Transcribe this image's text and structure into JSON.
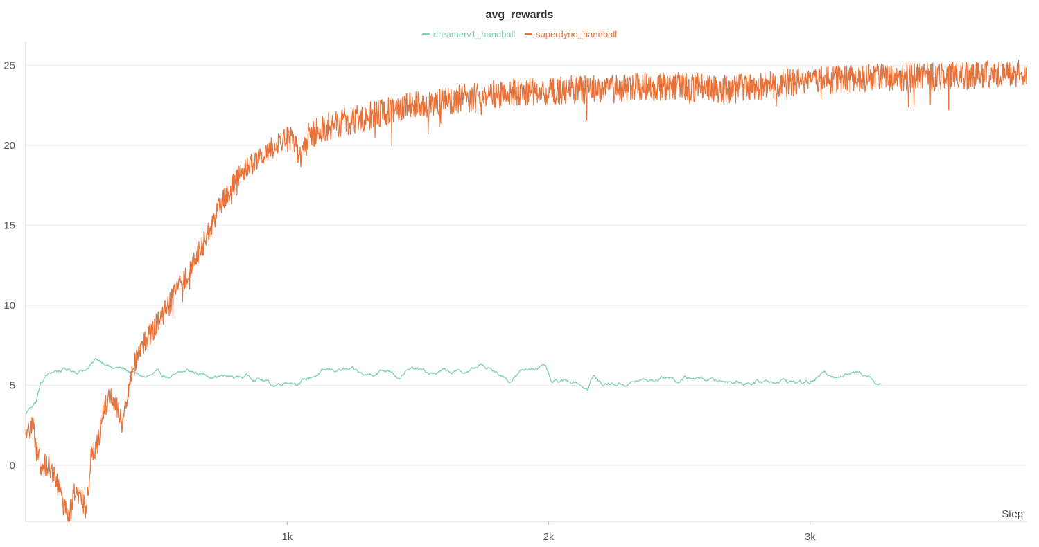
{
  "chart_data": {
    "type": "line",
    "title": "avg_rewards",
    "xlabel": "Step",
    "ylabel": "",
    "xlim": [
      0,
      3830
    ],
    "ylim": [
      -3.5,
      26.5
    ],
    "x_ticks": [
      1000,
      2000,
      3000
    ],
    "x_tick_labels": [
      "1k",
      "2k",
      "3k"
    ],
    "y_ticks": [
      0,
      5,
      10,
      15,
      20,
      25
    ],
    "y_tick_labels": [
      "0",
      "5",
      "10",
      "15",
      "20",
      "25"
    ],
    "grid": true,
    "legend": "top-center",
    "series": [
      {
        "name": "dreamerv1_handball",
        "color": "#7ecdb6",
        "noise": 0.18,
        "points": [
          [
            0,
            3.2
          ],
          [
            20,
            3.7
          ],
          [
            40,
            4.0
          ],
          [
            55,
            5.0
          ],
          [
            80,
            5.6
          ],
          [
            110,
            5.9
          ],
          [
            150,
            6.0
          ],
          [
            200,
            5.9
          ],
          [
            240,
            6.1
          ],
          [
            270,
            6.6
          ],
          [
            300,
            6.5
          ],
          [
            330,
            6.1
          ],
          [
            380,
            6.0
          ],
          [
            420,
            5.7
          ],
          [
            460,
            5.5
          ],
          [
            500,
            5.7
          ],
          [
            560,
            5.5
          ],
          [
            620,
            5.9
          ],
          [
            680,
            5.7
          ],
          [
            740,
            5.6
          ],
          [
            800,
            5.5
          ],
          [
            850,
            5.6
          ],
          [
            900,
            5.4
          ],
          [
            950,
            5.0
          ],
          [
            1000,
            5.3
          ],
          [
            1050,
            5.2
          ],
          [
            1100,
            5.6
          ],
          [
            1150,
            5.9
          ],
          [
            1200,
            6.0
          ],
          [
            1250,
            5.9
          ],
          [
            1300,
            5.6
          ],
          [
            1350,
            5.9
          ],
          [
            1400,
            6.0
          ],
          [
            1430,
            5.5
          ],
          [
            1450,
            5.9
          ],
          [
            1500,
            6.0
          ],
          [
            1550,
            5.7
          ],
          [
            1600,
            5.9
          ],
          [
            1650,
            5.8
          ],
          [
            1700,
            5.9
          ],
          [
            1740,
            6.3
          ],
          [
            1760,
            6.0
          ],
          [
            1800,
            5.9
          ],
          [
            1850,
            5.3
          ],
          [
            1900,
            5.9
          ],
          [
            1950,
            6.2
          ],
          [
            1990,
            6.1
          ],
          [
            2010,
            5.1
          ],
          [
            2050,
            5.2
          ],
          [
            2100,
            5.3
          ],
          [
            2150,
            4.8
          ],
          [
            2170,
            5.6
          ],
          [
            2200,
            5.1
          ],
          [
            2250,
            5.1
          ],
          [
            2300,
            5.1
          ],
          [
            2350,
            5.3
          ],
          [
            2400,
            5.3
          ],
          [
            2450,
            5.6
          ],
          [
            2500,
            5.3
          ],
          [
            2550,
            5.5
          ],
          [
            2600,
            5.4
          ],
          [
            2650,
            5.3
          ],
          [
            2700,
            5.3
          ],
          [
            2750,
            5.2
          ],
          [
            2800,
            5.2
          ],
          [
            2850,
            5.3
          ],
          [
            2900,
            5.3
          ],
          [
            2950,
            5.2
          ],
          [
            3000,
            5.2
          ],
          [
            3050,
            5.7
          ],
          [
            3100,
            5.7
          ],
          [
            3150,
            5.7
          ],
          [
            3200,
            5.8
          ],
          [
            3230,
            5.7
          ],
          [
            3250,
            5.2
          ],
          [
            3270,
            5.1
          ]
        ]
      },
      {
        "name": "superdyno_handball",
        "color": "#e8733a",
        "noise": 0.9,
        "points": [
          [
            0,
            1.5
          ],
          [
            25,
            2.8
          ],
          [
            40,
            1.5
          ],
          [
            60,
            0.0
          ],
          [
            90,
            0.0
          ],
          [
            120,
            -1.0
          ],
          [
            140,
            -2.5
          ],
          [
            165,
            -3.3
          ],
          [
            190,
            -1.5
          ],
          [
            215,
            -1.9
          ],
          [
            230,
            -3.0
          ],
          [
            250,
            0.7
          ],
          [
            270,
            1.0
          ],
          [
            300,
            3.5
          ],
          [
            330,
            4.5
          ],
          [
            350,
            3.5
          ],
          [
            370,
            2.5
          ],
          [
            390,
            4.5
          ],
          [
            420,
            6.5
          ],
          [
            460,
            7.8
          ],
          [
            500,
            8.8
          ],
          [
            540,
            9.8
          ],
          [
            580,
            11.0
          ],
          [
            620,
            12.0
          ],
          [
            660,
            13.2
          ],
          [
            700,
            14.5
          ],
          [
            740,
            16.2
          ],
          [
            780,
            17.2
          ],
          [
            820,
            18.2
          ],
          [
            860,
            18.8
          ],
          [
            900,
            19.3
          ],
          [
            940,
            19.8
          ],
          [
            980,
            20.4
          ],
          [
            1020,
            20.5
          ],
          [
            1050,
            19.3
          ],
          [
            1080,
            20.5
          ],
          [
            1120,
            21.0
          ],
          [
            1200,
            21.4
          ],
          [
            1300,
            21.8
          ],
          [
            1400,
            22.2
          ],
          [
            1500,
            22.5
          ],
          [
            1600,
            22.8
          ],
          [
            1700,
            23.0
          ],
          [
            1800,
            23.2
          ],
          [
            1900,
            23.3
          ],
          [
            2000,
            23.4
          ],
          [
            2100,
            23.5
          ],
          [
            2200,
            23.5
          ],
          [
            2300,
            23.6
          ],
          [
            2400,
            23.7
          ],
          [
            2500,
            23.7
          ],
          [
            2600,
            23.6
          ],
          [
            2700,
            23.5
          ],
          [
            2800,
            23.7
          ],
          [
            2900,
            23.9
          ],
          [
            3000,
            24.0
          ],
          [
            3100,
            24.1
          ],
          [
            3200,
            24.2
          ],
          [
            3300,
            24.2
          ],
          [
            3400,
            24.3
          ],
          [
            3500,
            24.3
          ],
          [
            3600,
            24.4
          ],
          [
            3700,
            24.4
          ],
          [
            3800,
            24.5
          ],
          [
            3830,
            24.5
          ]
        ]
      }
    ]
  }
}
